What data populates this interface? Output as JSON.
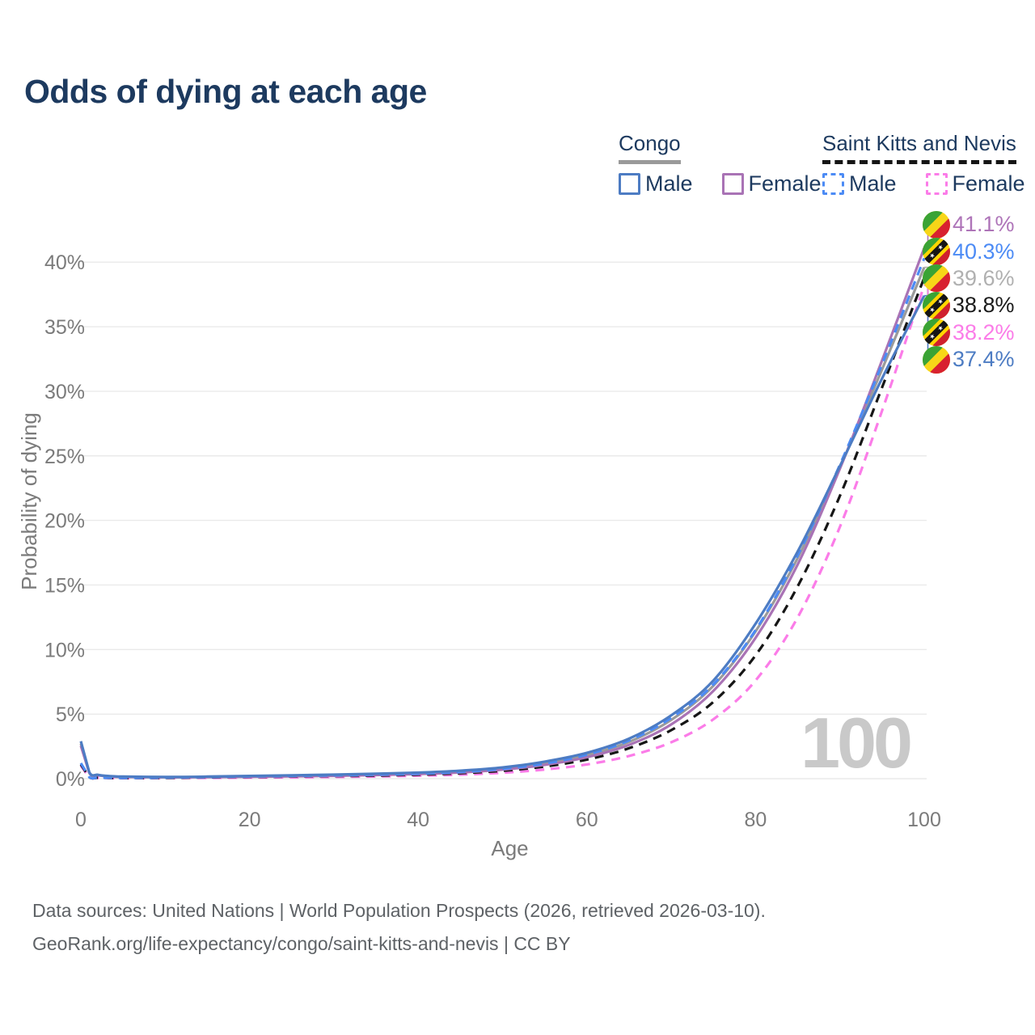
{
  "title": "Odds of dying at each age",
  "legend": {
    "groups": [
      {
        "name": "Congo",
        "underline_style": "solid",
        "underline_color": "#9a9a9a",
        "items": [
          {
            "label": "Male",
            "color": "#4d7cc3",
            "dashed": false
          },
          {
            "label": "Female",
            "color": "#a973b5",
            "dashed": false
          }
        ]
      },
      {
        "name": "Saint Kitts and Nevis",
        "underline_style": "dashed",
        "underline_color": "#151515",
        "items": [
          {
            "label": "Male",
            "color": "#4c8bf5",
            "dashed": true
          },
          {
            "label": "Female",
            "color": "#fb7ce8",
            "dashed": true
          }
        ]
      }
    ]
  },
  "watermark": "100",
  "end_labels": [
    {
      "value": "41.1%",
      "series": "congo-female",
      "flag": "congo",
      "color": "#ae74b8"
    },
    {
      "value": "40.3%",
      "series": "skn-male",
      "flag": "skn",
      "color": "#4c8bf5"
    },
    {
      "value": "39.6%",
      "series": "congo-both",
      "flag": "congo",
      "color": "#b0b0b0"
    },
    {
      "value": "38.8%",
      "series": "skn-both",
      "flag": "skn",
      "color": "#1a1a1a"
    },
    {
      "value": "38.2%",
      "series": "skn-female",
      "flag": "skn",
      "color": "#fb7ce8"
    },
    {
      "value": "37.4%",
      "series": "congo-male",
      "flag": "congo",
      "color": "#4d7cc3"
    }
  ],
  "footer": {
    "line1": "Data sources: United Nations | World Population Prospects (2026, retrieved 2026-03-10).",
    "line2": "GeoRank.org/life-expectancy/congo/saint-kitts-and-nevis | CC BY"
  },
  "chart_data": {
    "type": "line",
    "title": "Odds of dying at each age",
    "xlabel": "Age",
    "ylabel": "Probability of dying",
    "xlim": [
      0,
      100
    ],
    "ylim": [
      0,
      43
    ],
    "grid": "horizontal",
    "y_ticks": [
      0,
      5,
      10,
      15,
      20,
      25,
      30,
      35,
      40
    ],
    "y_tick_labels": [
      "0%",
      "5%",
      "10%",
      "15%",
      "20%",
      "25%",
      "30%",
      "35%",
      "40%"
    ],
    "x_ticks": [
      0,
      20,
      40,
      60,
      80,
      100
    ],
    "x_tick_labels": [
      "0",
      "20",
      "40",
      "60",
      "80",
      "100"
    ],
    "x": [
      0,
      1,
      2,
      3,
      4,
      5,
      10,
      15,
      20,
      25,
      30,
      35,
      40,
      45,
      50,
      55,
      60,
      65,
      70,
      75,
      80,
      85,
      90,
      95,
      100
    ],
    "series": [
      {
        "id": "skn-female",
        "name": "Saint Kitts and Nevis Female",
        "color": "#fb7ce8",
        "dash": "11 8",
        "values": [
          1.0,
          0.1,
          0.06,
          0.05,
          0.04,
          0.04,
          0.05,
          0.06,
          0.08,
          0.1,
          0.13,
          0.17,
          0.23,
          0.31,
          0.46,
          0.71,
          1.1,
          1.76,
          2.82,
          4.6,
          7.6,
          12.5,
          19.5,
          28.5,
          38.2
        ]
      },
      {
        "id": "skn-both",
        "name": "Saint Kitts and Nevis Both sexes",
        "color": "#161616",
        "dash": "11 8",
        "values": [
          1.1,
          0.11,
          0.07,
          0.06,
          0.05,
          0.05,
          0.06,
          0.1,
          0.13,
          0.16,
          0.2,
          0.24,
          0.31,
          0.42,
          0.61,
          0.94,
          1.48,
          2.36,
          3.76,
          5.95,
          9.55,
          14.9,
          21.9,
          30.3,
          38.8
        ]
      },
      {
        "id": "congo-both",
        "name": "Congo Both sexes",
        "color": "#9b9b9b",
        "dash": null,
        "values": [
          2.72,
          0.48,
          0.28,
          0.2,
          0.16,
          0.14,
          0.12,
          0.14,
          0.18,
          0.22,
          0.27,
          0.33,
          0.41,
          0.55,
          0.78,
          1.19,
          1.82,
          2.85,
          4.55,
          7.2,
          11.4,
          17.1,
          24.1,
          31.7,
          39.6
        ]
      },
      {
        "id": "congo-female",
        "name": "Congo Female",
        "color": "#a973b5",
        "dash": null,
        "values": [
          2.55,
          0.45,
          0.27,
          0.19,
          0.15,
          0.13,
          0.11,
          0.12,
          0.15,
          0.18,
          0.22,
          0.28,
          0.36,
          0.48,
          0.7,
          1.07,
          1.66,
          2.62,
          4.2,
          6.8,
          10.9,
          16.6,
          24.0,
          32.4,
          41.1
        ]
      },
      {
        "id": "skn-male",
        "name": "Saint Kitts and Nevis Male",
        "color": "#4c8bf5",
        "dash": "11 8",
        "values": [
          1.2,
          0.12,
          0.08,
          0.07,
          0.06,
          0.06,
          0.08,
          0.13,
          0.18,
          0.22,
          0.26,
          0.31,
          0.39,
          0.52,
          0.76,
          1.17,
          1.86,
          2.96,
          4.7,
          7.3,
          11.5,
          17.3,
          24.3,
          32.1,
          40.3
        ]
      },
      {
        "id": "congo-male",
        "name": "Congo Male",
        "color": "#4d7cc3",
        "dash": null,
        "values": [
          2.9,
          0.5,
          0.3,
          0.22,
          0.18,
          0.16,
          0.13,
          0.16,
          0.21,
          0.26,
          0.31,
          0.38,
          0.47,
          0.62,
          0.87,
          1.32,
          2.0,
          3.1,
          4.9,
          7.6,
          12.0,
          17.6,
          24.2,
          31.0,
          37.4
        ]
      }
    ]
  }
}
